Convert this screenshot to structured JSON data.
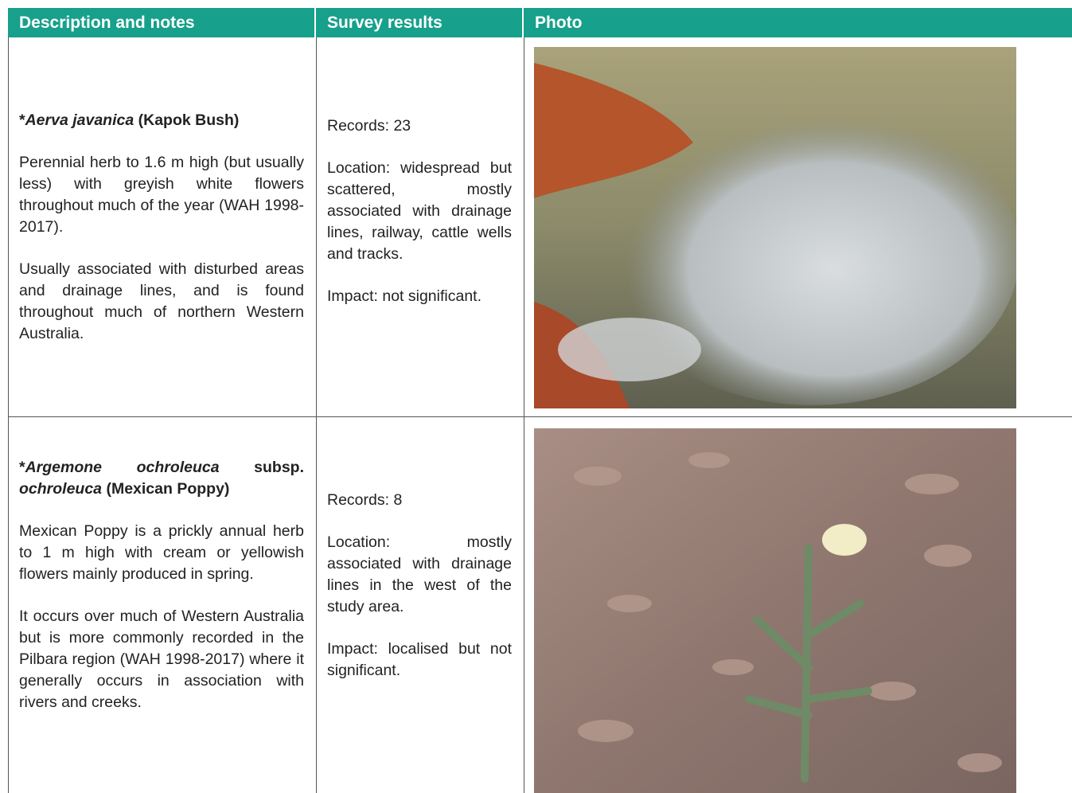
{
  "table": {
    "headers": [
      "Description and notes",
      "Survey results",
      "Photo"
    ],
    "rows": [
      {
        "title": [
          {
            "text": "*",
            "style": "bold"
          },
          {
            "text": "Aerva javanica",
            "style": "bold-italic"
          },
          {
            "text": " (Kapok Bush)",
            "style": "bold"
          }
        ],
        "notes": [
          "Perennial herb to 1.6 m high (but usually less) with greyish white flowers throughout much of the year (WAH 1998-2017).",
          "Usually associated with disturbed areas and drainage lines, and is found throughout much of northern Western Australia."
        ],
        "results": [
          "Records: 23",
          "Location: widespread but scattered, mostly associated with drainage lines, railway, cattle wells and tracks.",
          "Impact: not significant."
        ]
      },
      {
        "title": [
          {
            "text": "*",
            "style": "bold"
          },
          {
            "text": "Argemone ochroleuca",
            "style": "bold-italic"
          },
          {
            "text": " subsp. ",
            "style": "bold"
          },
          {
            "text": "ochroleuca",
            "style": "bold-italic"
          },
          {
            "text": " (Mexican Poppy)",
            "style": "bold"
          }
        ],
        "notes": [
          "Mexican Poppy is a prickly annual herb to 1 m high with cream or yellowish flowers mainly produced in spring.",
          "It occurs over much of Western Australia but is more commonly recorded in the Pilbara region (WAH 1998-2017) where it generally occurs in association with rivers and creeks."
        ],
        "results": [
          "Records: 8",
          "Location: mostly associated with drainage lines in the west of the study area.",
          "Impact: localised but not significant."
        ]
      }
    ]
  }
}
